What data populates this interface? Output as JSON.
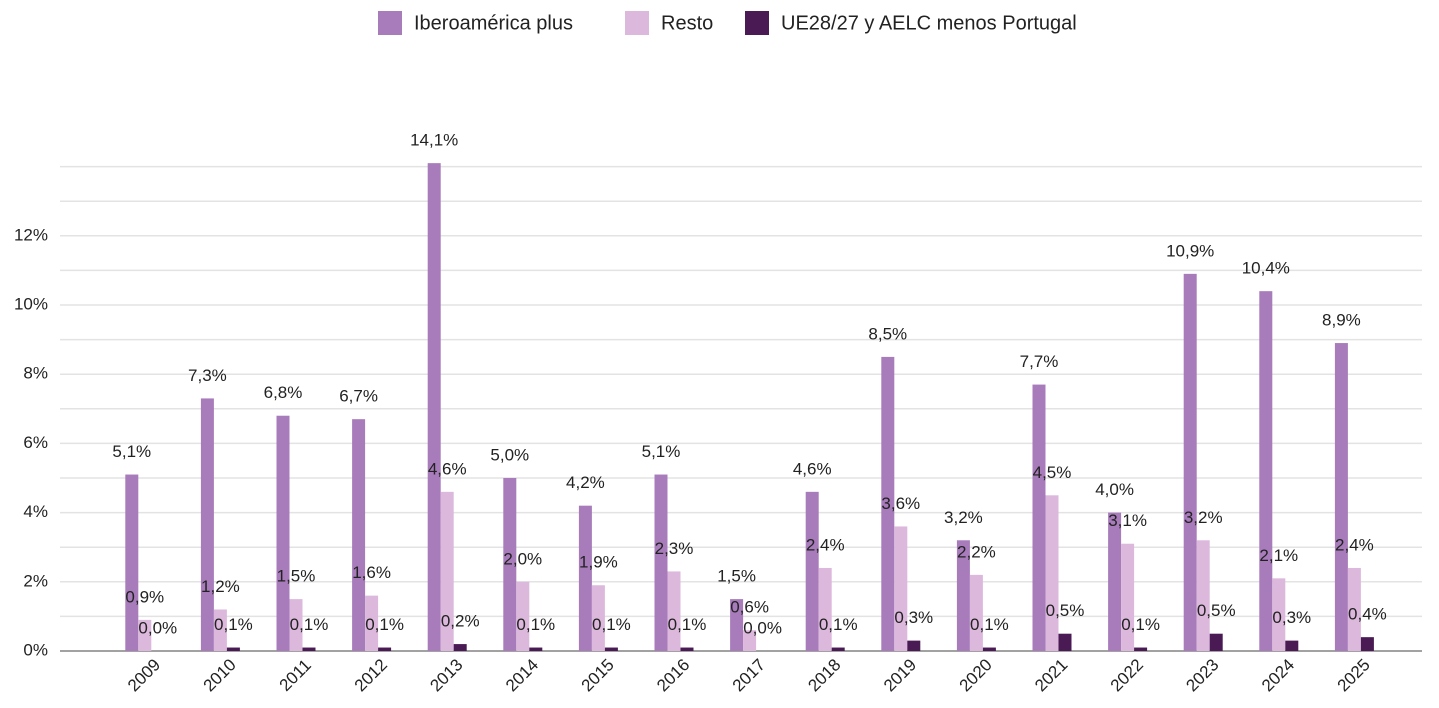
{
  "chart_data": {
    "type": "bar",
    "categories": [
      "2009",
      "2010",
      "2011",
      "2012",
      "2013",
      "2014",
      "2015",
      "2016",
      "2017",
      "2018",
      "2019",
      "2020",
      "2021",
      "2022",
      "2023",
      "2024",
      "2025"
    ],
    "series": [
      {
        "name": "Iberoamérica plus",
        "color": "#a87bbb",
        "values": [
          5.1,
          7.3,
          6.8,
          6.7,
          14.1,
          5.0,
          4.2,
          5.1,
          1.5,
          4.6,
          8.5,
          3.2,
          7.7,
          4.0,
          10.9,
          10.4,
          8.9
        ],
        "value_labels": [
          "5,1%",
          "7,3%",
          "6,8%",
          "6,7%",
          "14,1%",
          "5,0%",
          "4,2%",
          "5,1%",
          "1,5%",
          "4,6%",
          "8,5%",
          "3,2%",
          "7,7%",
          "4,0%",
          "10,9%",
          "10,4%",
          "8,9%"
        ]
      },
      {
        "name": "Resto",
        "color": "#dcb8dc",
        "values": [
          0.9,
          1.2,
          1.5,
          1.6,
          4.6,
          2.0,
          1.9,
          2.3,
          0.6,
          2.4,
          3.6,
          2.2,
          4.5,
          3.1,
          3.2,
          2.1,
          2.4
        ],
        "value_labels": [
          "0,9%",
          "1,2%",
          "1,5%",
          "1,6%",
          "4,6%",
          "2,0%",
          "1,9%",
          "2,3%",
          "0,6%",
          "2,4%",
          "3,6%",
          "2,2%",
          "4,5%",
          "3,1%",
          "3,2%",
          "2,1%",
          "2,4%"
        ]
      },
      {
        "name": "UE28/27 y AELC menos Portugal",
        "color": "#4a1a55",
        "values": [
          0.0,
          0.1,
          0.1,
          0.1,
          0.2,
          0.1,
          0.1,
          0.1,
          0.0,
          0.1,
          0.3,
          0.1,
          0.5,
          0.1,
          0.5,
          0.3,
          0.4
        ],
        "value_labels": [
          "0,0%",
          "0,1%",
          "0,1%",
          "0,1%",
          "0,2%",
          "0,1%",
          "0,1%",
          "0,1%",
          "0,0%",
          "0,1%",
          "0,3%",
          "0,1%",
          "0,5%",
          "0,1%",
          "0,5%",
          "0,3%",
          "0,4%"
        ]
      }
    ],
    "ylim": [
      0,
      14.2
    ],
    "yticks": [
      {
        "value": 0,
        "label": "0%"
      },
      {
        "value": 2,
        "label": "2%"
      },
      {
        "value": 4,
        "label": "4%"
      },
      {
        "value": 6,
        "label": "6%"
      },
      {
        "value": 8,
        "label": "8%"
      },
      {
        "value": 10,
        "label": "10%"
      },
      {
        "value": 12,
        "label": "12%"
      }
    ],
    "minor_yticks": [
      1,
      3,
      5,
      7,
      9,
      11,
      13,
      14
    ],
    "grid": true,
    "legend": "top"
  }
}
